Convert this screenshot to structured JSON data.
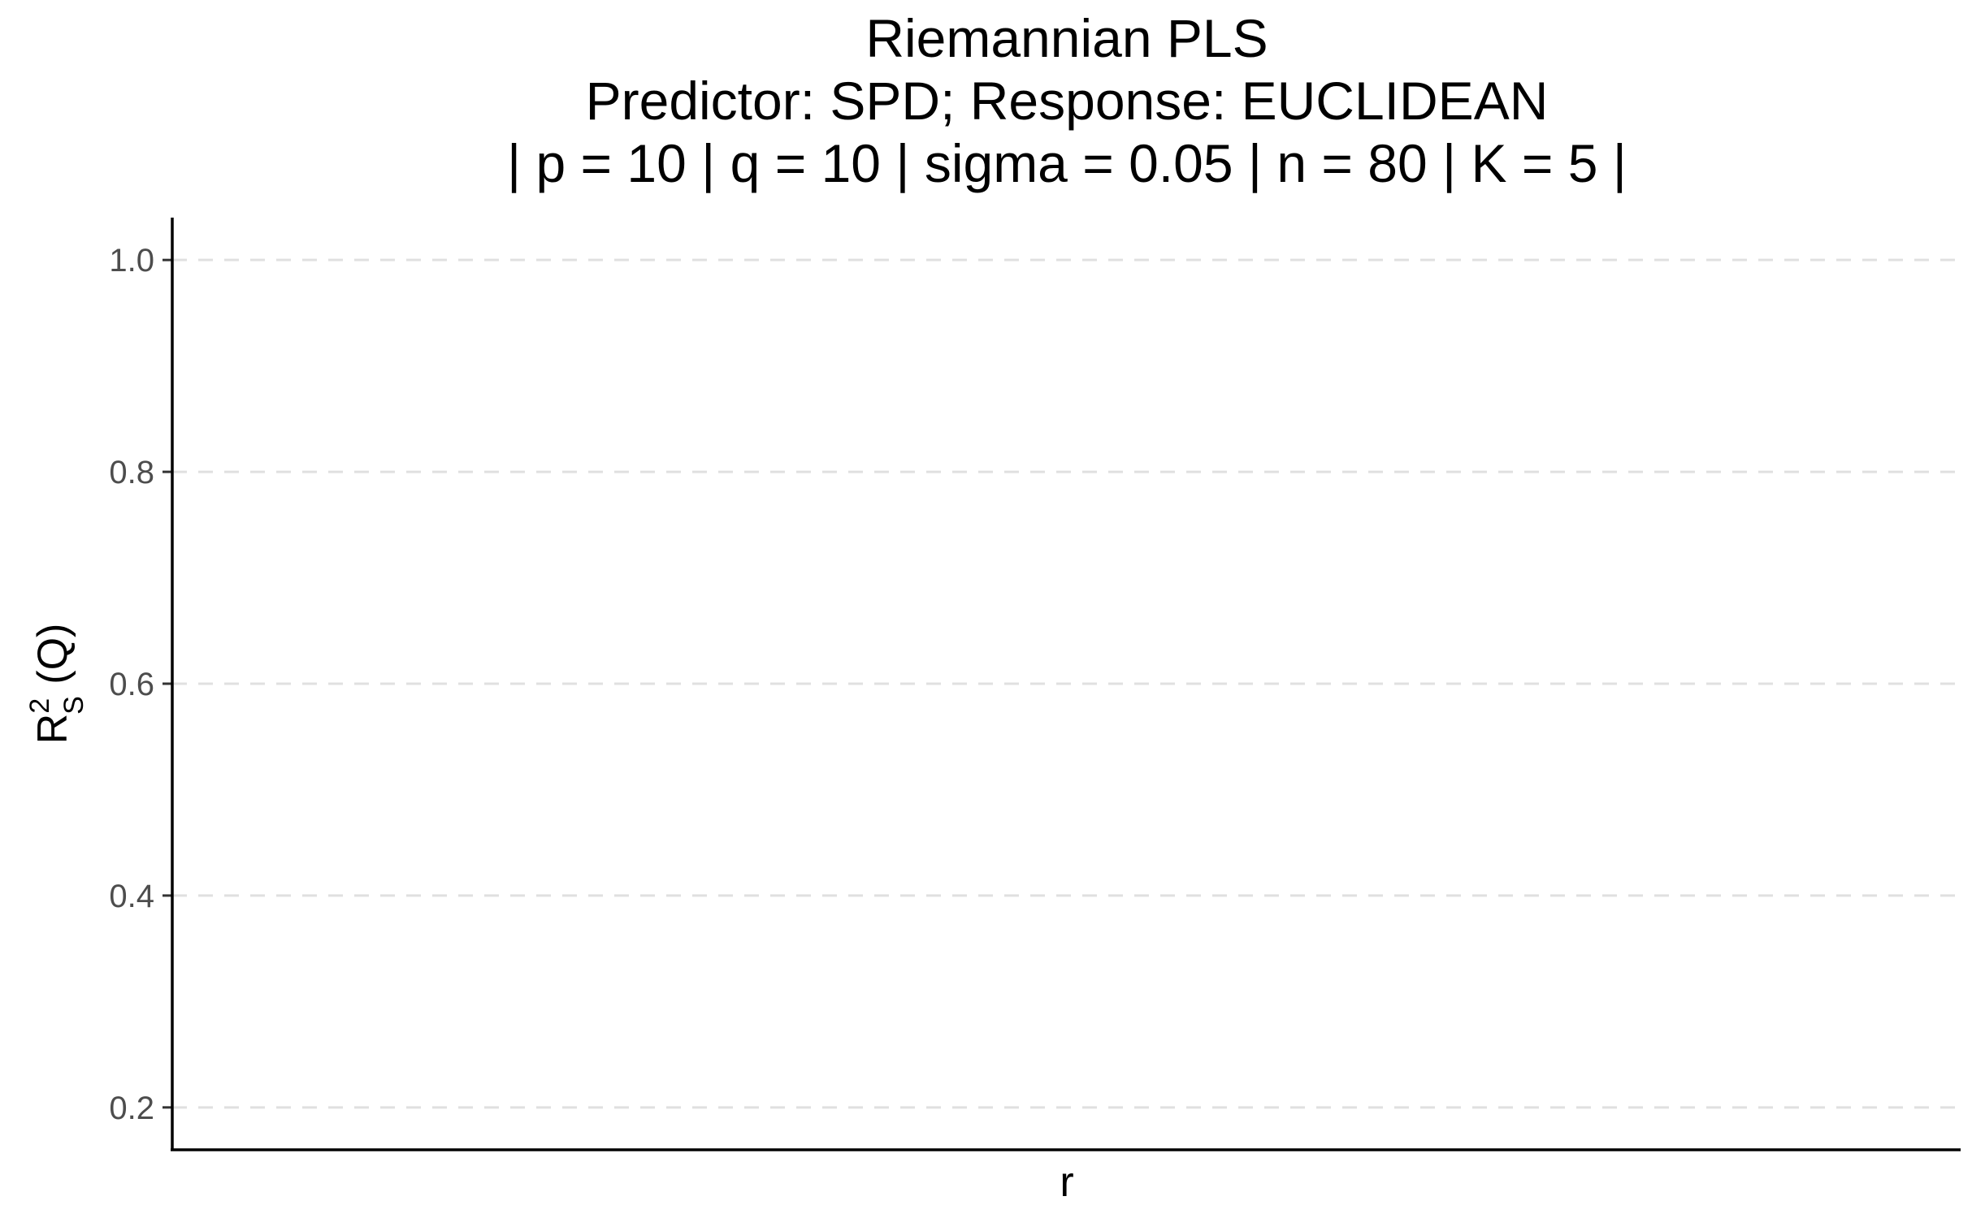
{
  "chart_data": {
    "type": "line",
    "title": [
      "Riemannian PLS",
      "Predictor: SPD; Response: EUCLIDEAN",
      "| p = 10 | q = 10 | sigma = 0.05 | n = 80 | K = 5 |"
    ],
    "xlabel": "r",
    "ylabel": {
      "base": "R",
      "superscript": "2",
      "subscript": "S",
      "suffix": " (Q)"
    },
    "ylim": [
      0.16,
      1.04
    ],
    "yticks": [
      0.2,
      0.4,
      0.6,
      0.8,
      1.0
    ],
    "ytick_labels": [
      "0.2",
      "0.4",
      "0.6",
      "0.8",
      "1.0"
    ],
    "x": [],
    "series": [],
    "grid": "horizontal-dashed",
    "legend": "none"
  }
}
